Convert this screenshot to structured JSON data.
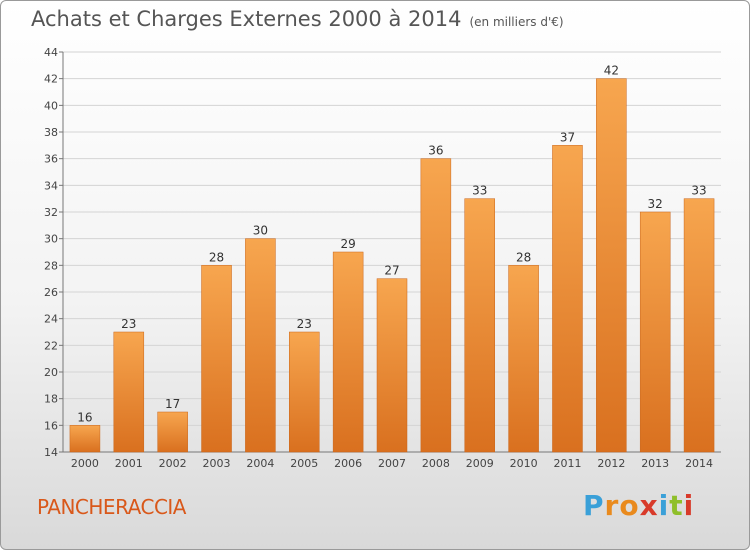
{
  "header": {
    "title": "Achats et Charges Externes 2000 à 2014",
    "subtitle": "(en milliers d'€)"
  },
  "footer": {
    "place": "PANCHERACCIA",
    "logo_letters": [
      "P",
      "r",
      "o",
      "x",
      "i",
      "t",
      "i"
    ],
    "logo_colors": [
      "#3aa0d8",
      "#e98a1d",
      "#e98a1d",
      "#d83a2a",
      "#3aa0d8",
      "#8fbf2a",
      "#d83a2a"
    ]
  },
  "chart_data": {
    "type": "bar",
    "categories": [
      "2000",
      "2001",
      "2002",
      "2003",
      "2004",
      "2005",
      "2006",
      "2007",
      "2008",
      "2009",
      "2010",
      "2011",
      "2012",
      "2013",
      "2014"
    ],
    "values": [
      16,
      23,
      17,
      28,
      30,
      23,
      29,
      27,
      36,
      33,
      28,
      37,
      42,
      32,
      33
    ],
    "ylim": [
      14,
      44
    ],
    "yticks": [
      14,
      16,
      18,
      20,
      22,
      24,
      26,
      28,
      30,
      32,
      34,
      36,
      38,
      40,
      42,
      44
    ],
    "grid": true,
    "bar_color_top": "#f7a64f",
    "bar_color_bottom": "#d9701f"
  }
}
